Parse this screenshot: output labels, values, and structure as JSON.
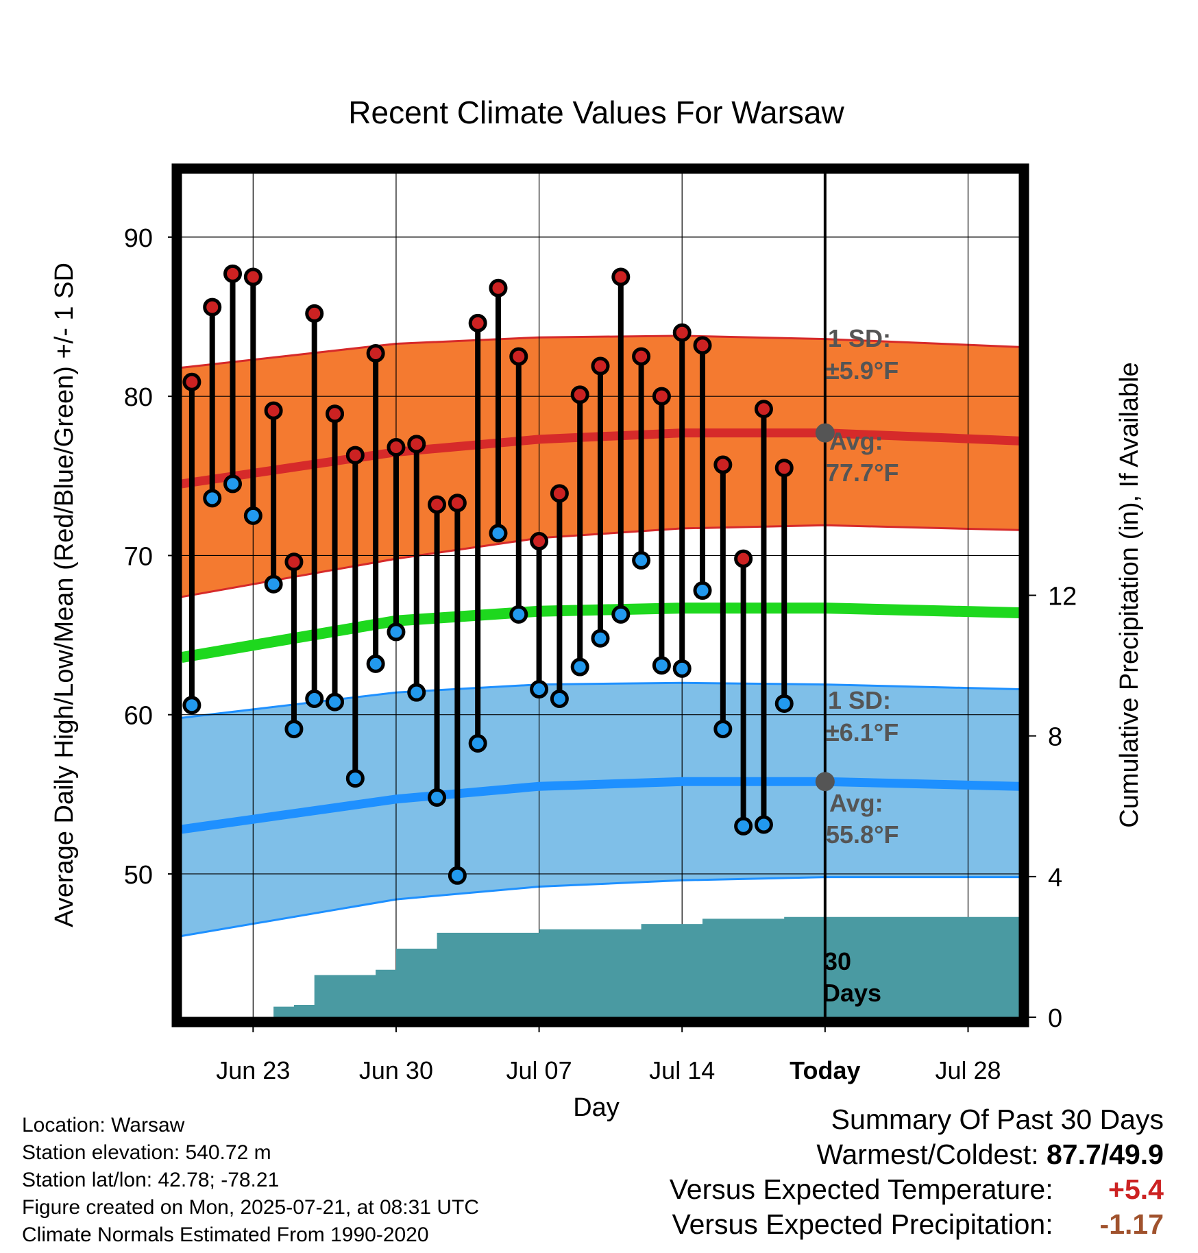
{
  "chart_data": {
    "type": "line",
    "title": "Recent Climate Values For Warsaw",
    "xlabel": "Day",
    "ylabel": "Average Daily High/Low/Mean (Red/Blue/Green) +/- 1 SD",
    "y2label": "Cumulative Precipitation (in), If Available",
    "x_tick_labels": [
      "Jun 23",
      "Jun 30",
      "Jul 07",
      "Jul 14",
      "Today",
      "Jul 28"
    ],
    "x_tick_days": [
      2,
      9,
      16,
      23,
      30,
      37
    ],
    "x_range_days": [
      -1.5,
      39.5
    ],
    "ylim": [
      41,
      94
    ],
    "yticks": [
      50,
      60,
      70,
      80,
      90
    ],
    "y2lim": [
      0,
      24
    ],
    "y2ticks": [
      0,
      4,
      8,
      12
    ],
    "grid": true,
    "today_day": 30,
    "window_label": "30 Days",
    "daily": {
      "days": [
        -1,
        0,
        1,
        2,
        3,
        4,
        5,
        6,
        7,
        8,
        9,
        10,
        11,
        12,
        13,
        14,
        15,
        16,
        17,
        18,
        19,
        20,
        21,
        22,
        23,
        24,
        25,
        26,
        27,
        28,
        29
      ],
      "highs": [
        80.9,
        85.6,
        87.7,
        87.5,
        79.1,
        69.6,
        85.2,
        78.9,
        76.3,
        82.7,
        76.8,
        77.0,
        73.2,
        73.3,
        84.6,
        86.8,
        82.5,
        70.9,
        73.9,
        80.1,
        81.9,
        87.5,
        82.5,
        80.0,
        84.0,
        83.2,
        75.7,
        69.8,
        79.2,
        75.5
      ],
      "lows": [
        60.6,
        73.6,
        74.5,
        72.5,
        68.2,
        59.1,
        61.0,
        60.8,
        56.0,
        63.2,
        65.2,
        61.4,
        54.8,
        49.9,
        58.2,
        71.4,
        66.3,
        61.6,
        61.0,
        63.0,
        64.8,
        66.3,
        69.7,
        63.1,
        62.9,
        67.8,
        59.1,
        53.0,
        53.1,
        60.7
      ],
      "precip_cumulative": [
        0,
        0,
        0,
        0,
        0.3,
        0.35,
        1.2,
        1.2,
        1.2,
        1.35,
        1.95,
        1.95,
        2.4,
        2.4,
        2.4,
        2.4,
        2.4,
        2.5,
        2.5,
        2.5,
        2.5,
        2.5,
        2.65,
        2.65,
        2.65,
        2.8,
        2.8,
        2.8,
        2.8,
        2.85,
        2.85
      ]
    },
    "normals": {
      "days": [
        -1.5,
        9,
        16,
        23,
        30,
        39.5
      ],
      "high_avg": [
        74.5,
        76.5,
        77.3,
        77.7,
        77.7,
        77.2
      ],
      "high_upper": [
        81.8,
        83.3,
        83.7,
        83.8,
        83.6,
        83.1
      ],
      "high_lower": [
        67.4,
        69.8,
        71.1,
        71.7,
        71.9,
        71.6
      ],
      "mean_avg": [
        63.6,
        65.9,
        66.5,
        66.7,
        66.7,
        66.4
      ],
      "low_avg": [
        52.8,
        54.7,
        55.5,
        55.8,
        55.8,
        55.5
      ],
      "low_upper": [
        59.8,
        61.4,
        61.9,
        62.0,
        61.9,
        61.6
      ],
      "low_lower": [
        46.1,
        48.4,
        49.2,
        49.6,
        49.8,
        49.8
      ]
    },
    "annotations": {
      "high_sd_label": "1 SD:",
      "high_sd_value": "±5.9°F",
      "high_avg_label": "Avg:",
      "high_avg_value": "77.7°F",
      "low_sd_label": "1 SD:",
      "low_sd_value": "±6.1°F",
      "low_avg_label": "Avg:",
      "low_avg_value": "55.8°F",
      "window_line1": "30",
      "window_line2": "Days"
    },
    "colors": {
      "high_band": "#f47a30",
      "high_line": "#d62a2a",
      "low_band": "#7fbfe8",
      "low_line": "#1e90ff",
      "mean_line": "#1ed81e",
      "precip_fill": "#4a9aa2",
      "high_marker": "#cc2222",
      "low_marker": "#2299ee",
      "annotation_text": "#555555"
    }
  },
  "meta": {
    "location": "Location: Warsaw",
    "elevation": "Station elevation: 540.72 m",
    "latlon": "Station lat/lon: 42.78; -78.21",
    "created": "Figure created on Mon, 2025-07-21, at 08:31 UTC",
    "normals": "Climate Normals Estimated From 1990-2020"
  },
  "summary": {
    "title": "Summary Of Past 30 Days",
    "warm_cold_label": "Warmest/Coldest:",
    "warm_cold_value": "87.7/49.9",
    "temp_label": "Versus Expected Temperature:",
    "temp_value": "+5.4",
    "precip_label": "Versus Expected Precipitation:",
    "precip_value": "-1.17"
  }
}
